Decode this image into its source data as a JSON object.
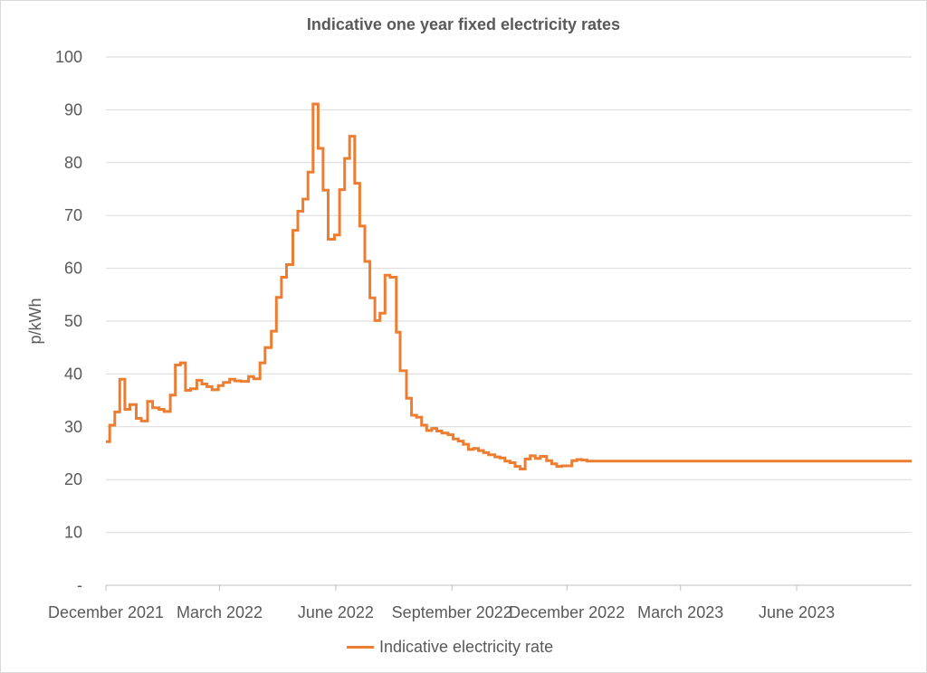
{
  "chart_data": {
    "type": "line",
    "title": "Indicative one year fixed electricity rates",
    "ylabel": "p/kWh",
    "xlabel": "",
    "ylim": [
      0,
      100
    ],
    "yticks": [
      "-",
      "10",
      "20",
      "30",
      "40",
      "50",
      "60",
      "70",
      "80",
      "90",
      "100"
    ],
    "xticks": [
      "December 2021",
      "March 2022",
      "June 2022",
      "September 2022",
      "December 2022",
      "March 2023",
      "June 2023"
    ],
    "xrange": [
      "2021-12-01",
      "2023-08-31"
    ],
    "grid": true,
    "legend_position": "bottom",
    "series": [
      {
        "name": "Indicative electricity rate",
        "color": "#ED7D31",
        "step": true,
        "points": [
          [
            "2021-12-01",
            27.2
          ],
          [
            "2021-12-04",
            30.3
          ],
          [
            "2021-12-08",
            32.8
          ],
          [
            "2021-12-12",
            39.0
          ],
          [
            "2021-12-16",
            33.3
          ],
          [
            "2021-12-20",
            34.2
          ],
          [
            "2021-12-25",
            31.6
          ],
          [
            "2021-12-29",
            31.1
          ],
          [
            "2022-01-03",
            34.8
          ],
          [
            "2022-01-07",
            33.6
          ],
          [
            "2022-01-12",
            33.3
          ],
          [
            "2022-01-16",
            32.9
          ],
          [
            "2022-01-21",
            36.0
          ],
          [
            "2022-01-25",
            41.7
          ],
          [
            "2022-01-29",
            42.1
          ],
          [
            "2022-02-02",
            36.9
          ],
          [
            "2022-02-06",
            37.2
          ],
          [
            "2022-02-11",
            38.8
          ],
          [
            "2022-02-15",
            38.1
          ],
          [
            "2022-02-19",
            37.6
          ],
          [
            "2022-02-23",
            37.0
          ],
          [
            "2022-02-28",
            37.8
          ],
          [
            "2022-03-04",
            38.4
          ],
          [
            "2022-03-09",
            39.0
          ],
          [
            "2022-03-13",
            38.7
          ],
          [
            "2022-03-18",
            38.6
          ],
          [
            "2022-03-24",
            39.5
          ],
          [
            "2022-03-28",
            39.1
          ],
          [
            "2022-04-02",
            42.1
          ],
          [
            "2022-04-06",
            45.0
          ],
          [
            "2022-04-11",
            48.1
          ],
          [
            "2022-04-15",
            54.5
          ],
          [
            "2022-04-19",
            58.3
          ],
          [
            "2022-04-23",
            60.7
          ],
          [
            "2022-04-28",
            67.2
          ],
          [
            "2022-05-02",
            70.8
          ],
          [
            "2022-05-06",
            73.1
          ],
          [
            "2022-05-10",
            78.2
          ],
          [
            "2022-05-14",
            91.1
          ],
          [
            "2022-05-18",
            82.7
          ],
          [
            "2022-05-22",
            74.8
          ],
          [
            "2022-05-26",
            65.5
          ],
          [
            "2022-05-31",
            66.3
          ],
          [
            "2022-06-04",
            74.9
          ],
          [
            "2022-06-08",
            80.8
          ],
          [
            "2022-06-12",
            85.0
          ],
          [
            "2022-06-16",
            76.1
          ],
          [
            "2022-06-20",
            68.0
          ],
          [
            "2022-06-24",
            61.3
          ],
          [
            "2022-06-28",
            54.4
          ],
          [
            "2022-07-02",
            50.1
          ],
          [
            "2022-07-06",
            51.5
          ],
          [
            "2022-07-10",
            58.7
          ],
          [
            "2022-07-14",
            58.3
          ],
          [
            "2022-07-19",
            47.9
          ],
          [
            "2022-07-22",
            40.6
          ],
          [
            "2022-07-27",
            35.4
          ],
          [
            "2022-07-31",
            32.2
          ],
          [
            "2022-08-04",
            31.8
          ],
          [
            "2022-08-08",
            30.3
          ],
          [
            "2022-08-12",
            29.3
          ],
          [
            "2022-08-16",
            29.7
          ],
          [
            "2022-08-20",
            29.2
          ],
          [
            "2022-08-24",
            28.8
          ],
          [
            "2022-08-29",
            28.5
          ],
          [
            "2022-09-02",
            27.7
          ],
          [
            "2022-09-06",
            27.3
          ],
          [
            "2022-09-10",
            26.7
          ],
          [
            "2022-09-14",
            25.7
          ],
          [
            "2022-09-18",
            25.9
          ],
          [
            "2022-09-22",
            25.5
          ],
          [
            "2022-09-26",
            25.1
          ],
          [
            "2022-09-30",
            24.7
          ],
          [
            "2022-10-05",
            24.3
          ],
          [
            "2022-10-09",
            24.1
          ],
          [
            "2022-10-13",
            23.5
          ],
          [
            "2022-10-17",
            23.2
          ],
          [
            "2022-10-21",
            22.5
          ],
          [
            "2022-10-25",
            22.0
          ],
          [
            "2022-10-29",
            23.9
          ],
          [
            "2022-11-02",
            24.5
          ],
          [
            "2022-11-06",
            24.0
          ],
          [
            "2022-11-10",
            24.4
          ],
          [
            "2022-11-15",
            23.6
          ],
          [
            "2022-11-19",
            23.0
          ],
          [
            "2022-11-23",
            22.5
          ],
          [
            "2022-11-27",
            22.6
          ],
          [
            "2022-12-01",
            22.6
          ],
          [
            "2022-12-05",
            23.6
          ],
          [
            "2022-12-09",
            23.8
          ],
          [
            "2022-12-13",
            23.7
          ],
          [
            "2022-12-17",
            23.5
          ],
          [
            "2022-12-21",
            23.5
          ]
        ]
      }
    ]
  }
}
